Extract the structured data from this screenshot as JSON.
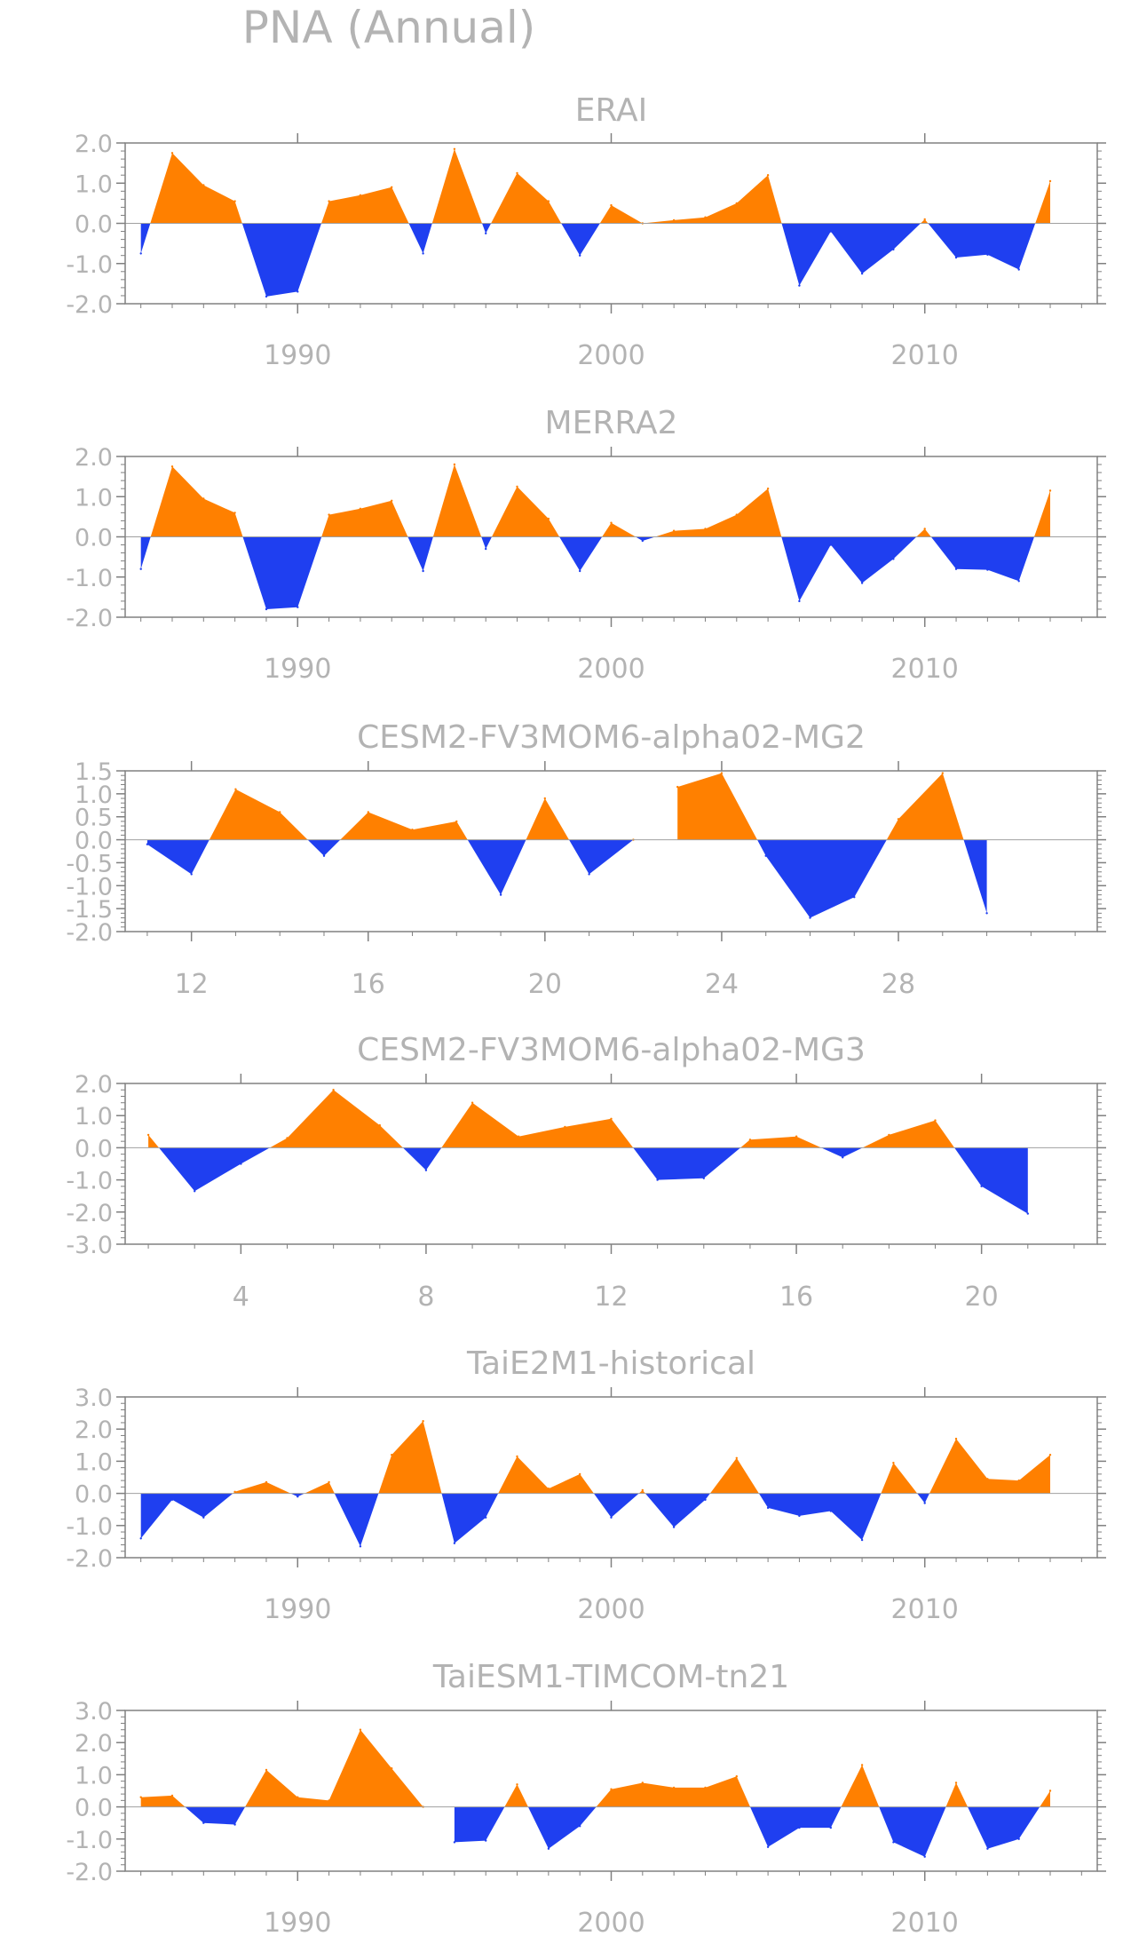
{
  "figure": {
    "title": "PNA (Annual)"
  },
  "colors": {
    "positive": "#ff8000",
    "negative": "#1f3ff0",
    "axis": "#808080",
    "text": "#b3b3b3"
  },
  "chart_data": [
    {
      "type": "area",
      "title": "ERAI",
      "xlim": [
        1984.5,
        2015.5
      ],
      "ylim": [
        -2,
        2
      ],
      "yticks": [
        2,
        1,
        0,
        -1,
        -2
      ],
      "ytick_labels": [
        "2.0",
        "1.0",
        "0.0",
        "-1.0",
        "-2.0"
      ],
      "xticks": [
        1990,
        2000,
        2010
      ],
      "xtick_labels": [
        "1990",
        "2000",
        "2010"
      ],
      "x": [
        1985,
        1986,
        1987,
        1988,
        1989,
        1990,
        1991,
        1992,
        1993,
        1994,
        1995,
        1996,
        1997,
        1998,
        1999,
        2000,
        2001,
        2002,
        2003,
        2004,
        2005,
        2006,
        2007,
        2008,
        2009,
        2010,
        2011,
        2012,
        2013,
        2014
      ],
      "values": [
        -0.75,
        1.75,
        0.95,
        0.55,
        -1.82,
        -1.7,
        0.55,
        0.7,
        0.9,
        -0.75,
        1.85,
        -0.25,
        1.25,
        0.55,
        -0.8,
        0.45,
        0,
        0.08,
        0.15,
        0.5,
        1.2,
        -1.55,
        -0.2,
        -1.25,
        -0.65,
        0.1,
        -0.85,
        -0.78,
        -1.15,
        1.05
      ]
    },
    {
      "type": "area",
      "title": "MERRA2",
      "xlim": [
        1984.5,
        2015.5
      ],
      "ylim": [
        -2,
        2
      ],
      "yticks": [
        2,
        1,
        0,
        -1,
        -2
      ],
      "ytick_labels": [
        "2.0",
        "1.0",
        "0.0",
        "-1.0",
        "-2.0"
      ],
      "xticks": [
        1990,
        2000,
        2010
      ],
      "xtick_labels": [
        "1990",
        "2000",
        "2010"
      ],
      "x": [
        1985,
        1986,
        1987,
        1988,
        1989,
        1990,
        1991,
        1992,
        1993,
        1994,
        1995,
        1996,
        1997,
        1998,
        1999,
        2000,
        2001,
        2002,
        2003,
        2004,
        2005,
        2006,
        2007,
        2008,
        2009,
        2010,
        2011,
        2012,
        2013,
        2014
      ],
      "values": [
        -0.8,
        1.75,
        0.95,
        0.6,
        -1.8,
        -1.75,
        0.55,
        0.7,
        0.9,
        -0.85,
        1.8,
        -0.3,
        1.25,
        0.45,
        -0.85,
        0.35,
        -0.1,
        0.15,
        0.2,
        0.55,
        1.2,
        -1.6,
        -0.2,
        -1.15,
        -0.55,
        0.2,
        -0.8,
        -0.82,
        -1.1,
        1.15
      ]
    },
    {
      "type": "area",
      "title": "CESM2-FV3MOM6-alpha02-MG2",
      "xlim": [
        10.5,
        32.5
      ],
      "ylim": [
        -2,
        1.5
      ],
      "yticks": [
        1.5,
        1,
        0.5,
        0,
        -0.5,
        -1,
        -1.5,
        -2
      ],
      "ytick_labels": [
        "1.5",
        "1.0",
        "0.5",
        "0.0",
        "-0.5",
        "-1.0",
        "-1.5",
        "-2.0"
      ],
      "xticks": [
        12,
        16,
        20,
        24,
        28
      ],
      "xtick_labels": [
        "12",
        "16",
        "20",
        "24",
        "28"
      ],
      "x": [
        11,
        12,
        13,
        14,
        15,
        16,
        17,
        18,
        19,
        20,
        21,
        22,
        23,
        24,
        25,
        26,
        27,
        28,
        29,
        30
      ],
      "values": [
        -0.1,
        -0.75,
        1.1,
        0.6,
        -0.35,
        0.6,
        0.22,
        0.4,
        -1.2,
        0.9,
        -0.75,
        0,
        1.15,
        1.45,
        -0.35,
        -1.7,
        -1.25,
        0.45,
        1.45,
        -1.6
      ]
    },
    {
      "type": "area",
      "title": "CESM2-FV3MOM6-alpha02-MG3",
      "xlim": [
        1.5,
        22.5
      ],
      "ylim": [
        -3,
        2
      ],
      "yticks": [
        2,
        1,
        0,
        -1,
        -2,
        -3
      ],
      "ytick_labels": [
        "2.0",
        "1.0",
        "0.0",
        "-1.0",
        "-2.0",
        "-3.0"
      ],
      "xticks": [
        4,
        8,
        12,
        16,
        20
      ],
      "xtick_labels": [
        "4",
        "8",
        "12",
        "16",
        "20"
      ],
      "x": [
        2,
        3,
        4,
        5,
        6,
        7,
        8,
        9,
        10,
        11,
        12,
        13,
        14,
        15,
        16,
        17,
        18,
        19,
        20,
        21
      ],
      "values": [
        0.4,
        -1.35,
        -0.5,
        0.3,
        1.8,
        0.7,
        -0.7,
        1.4,
        0.35,
        0.65,
        0.9,
        -1,
        -0.95,
        0.25,
        0.35,
        -0.3,
        0.4,
        0.85,
        -1.2,
        -2.05
      ]
    },
    {
      "type": "area",
      "title": "TaiE2M1-historical",
      "xlim": [
        1984.5,
        2015.5
      ],
      "ylim": [
        -2,
        3
      ],
      "yticks": [
        3,
        2,
        1,
        0,
        -1,
        -2
      ],
      "ytick_labels": [
        "3.0",
        "2.0",
        "1.0",
        "0.0",
        "-1.0",
        "-2.0"
      ],
      "xticks": [
        1990,
        2000,
        2010
      ],
      "xtick_labels": [
        "1990",
        "2000",
        "2010"
      ],
      "x": [
        1985,
        1986,
        1987,
        1988,
        1989,
        1990,
        1991,
        1992,
        1993,
        1994,
        1995,
        1996,
        1997,
        1998,
        1999,
        2000,
        2001,
        2002,
        2003,
        2004,
        2005,
        2006,
        2007,
        2008,
        2009,
        2010,
        2011,
        2012,
        2013,
        2014
      ],
      "values": [
        -1.4,
        -0.2,
        -0.75,
        0.05,
        0.35,
        -0.1,
        0.35,
        -1.65,
        1.2,
        2.25,
        -1.55,
        -0.75,
        1.15,
        0.15,
        0.6,
        -0.75,
        0.1,
        -1.05,
        -0.2,
        1.1,
        -0.45,
        -0.7,
        -0.55,
        -1.45,
        0.95,
        -0.3,
        1.7,
        0.45,
        0.4,
        1.2
      ]
    },
    {
      "type": "area",
      "title": "TaiESM1-TIMCOM-tn21",
      "xlim": [
        1984.5,
        2015.5
      ],
      "ylim": [
        -2,
        3
      ],
      "yticks": [
        3,
        2,
        1,
        0,
        -1,
        -2
      ],
      "ytick_labels": [
        "3.0",
        "2.0",
        "1.0",
        "0.0",
        "-1.0",
        "-2.0"
      ],
      "xticks": [
        1990,
        2000,
        2010
      ],
      "xtick_labels": [
        "1990",
        "2000",
        "2010"
      ],
      "x": [
        1985,
        1986,
        1987,
        1988,
        1989,
        1990,
        1991,
        1992,
        1993,
        1994,
        1995,
        1996,
        1997,
        1998,
        1999,
        2000,
        2001,
        2002,
        2003,
        2004,
        2005,
        2006,
        2007,
        2008,
        2009,
        2010,
        2011,
        2012,
        2013,
        2014
      ],
      "values": [
        0.3,
        0.35,
        -0.5,
        -0.55,
        1.15,
        0.3,
        0.2,
        2.4,
        1.2,
        0,
        -1.1,
        -1.05,
        0.7,
        -1.3,
        -0.6,
        0.55,
        0.75,
        0.6,
        0.6,
        0.95,
        -1.25,
        -0.65,
        -0.65,
        1.3,
        -1.1,
        -1.55,
        0.75,
        -1.3,
        -1,
        0.5
      ]
    }
  ]
}
